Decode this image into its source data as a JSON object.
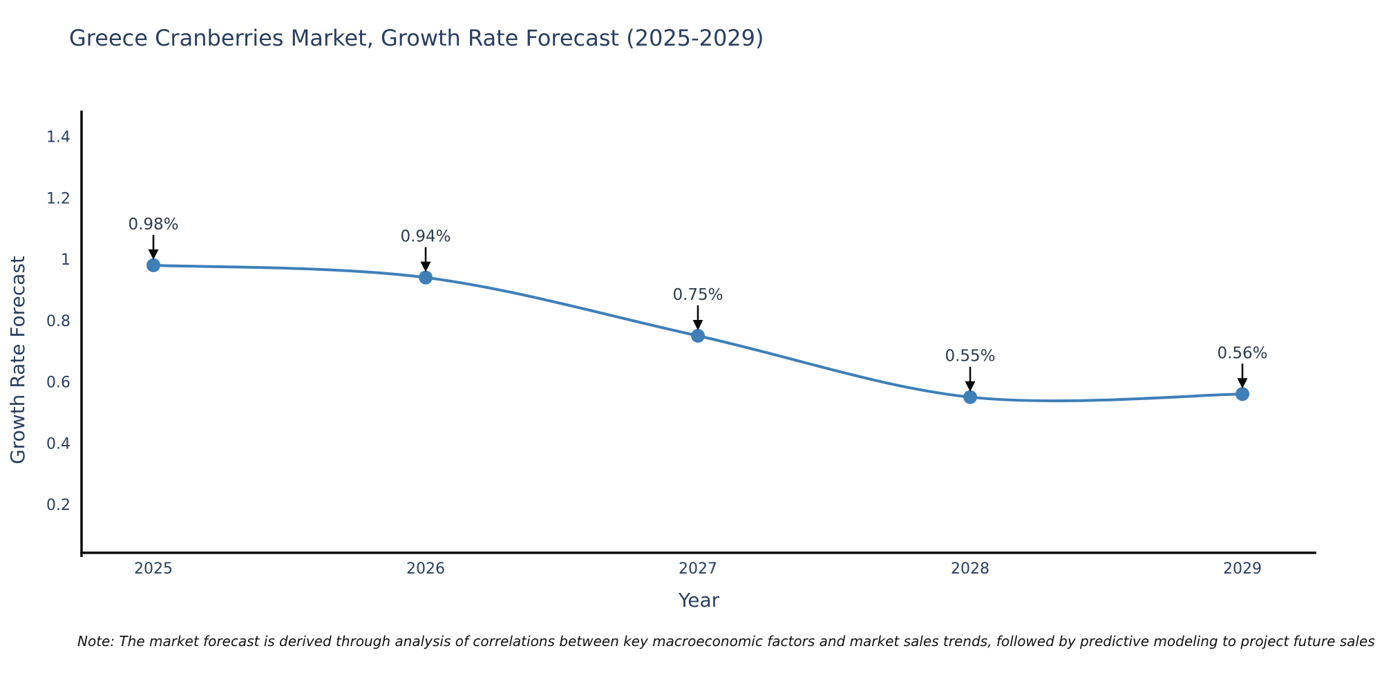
{
  "note": "Note: The market forecast is derived through analysis of correlations between key macroeconomic factors and market sales trends, followed by predictive modeling to project future sales",
  "chart_data": {
    "type": "line",
    "title": "Greece Cranberries Market, Growth Rate Forecast (2025-2029)",
    "xlabel": "Year",
    "ylabel": "Growth Rate Forecast",
    "x": [
      2025,
      2026,
      2027,
      2028,
      2029
    ],
    "values": [
      0.98,
      0.94,
      0.75,
      0.55,
      0.56
    ],
    "point_labels": [
      "0.98%",
      "0.94%",
      "0.75%",
      "0.55%",
      "0.56%"
    ],
    "ytick_labels": [
      "0.2",
      "0.4",
      "0.6",
      "0.8",
      "1",
      "1.2",
      "1.4"
    ],
    "ytick_values": [
      0.2,
      0.4,
      0.6,
      0.8,
      1.0,
      1.2,
      1.4
    ],
    "ylim": [
      0.04,
      1.49
    ],
    "line_shape": "spline",
    "grid": false,
    "legend": "none",
    "colors": {
      "line": "#3e7fb8",
      "marker": "#3e7fb8",
      "axis": "#0b0b0b",
      "arrow": "#0b0b0b",
      "text": "#2a3f5f"
    }
  }
}
